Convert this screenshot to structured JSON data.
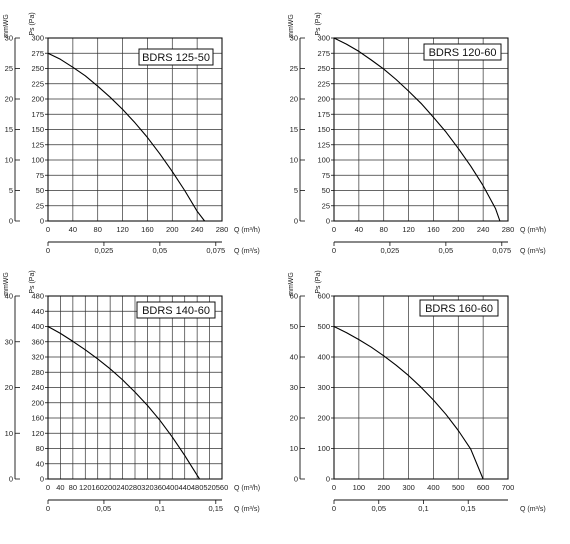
{
  "chart_data": [
    {
      "type": "line",
      "title": "BDRS 125-50",
      "y_left_label": "mmWG",
      "y_right_label": "Ps (Pa)",
      "x_top_label": "Q (m³/h)",
      "x_bottom_label": "Q (m³/s)",
      "ylim_pa": [
        0,
        300
      ],
      "y_pa_ticks": [
        "0",
        "25",
        "50",
        "75",
        "100",
        "125",
        "150",
        "175",
        "200",
        "225",
        "250",
        "275",
        "300"
      ],
      "y_mmwg_ticks": [
        "0",
        "5",
        "10",
        "15",
        "20",
        "25",
        "30"
      ],
      "xlim_m3h": [
        0,
        280
      ],
      "x_m3h_ticks": [
        "0",
        "40",
        "80",
        "120",
        "160",
        "200",
        "240",
        "280"
      ],
      "x_m3s_ticks": [
        {
          "v": 0,
          "label": "0"
        },
        {
          "v": 0.025,
          "label": "0,025"
        },
        {
          "v": 0.05,
          "label": "0,05"
        },
        {
          "v": 0.075,
          "label": "0,075"
        }
      ],
      "grid": true,
      "series": [
        {
          "x": [
            0,
            20,
            40,
            60,
            80,
            100,
            120,
            140,
            160,
            180,
            200,
            220,
            240,
            252
          ],
          "y": [
            275,
            265,
            252,
            238,
            221,
            203,
            183,
            161,
            137,
            110,
            81,
            50,
            16,
            0
          ]
        }
      ]
    },
    {
      "type": "line",
      "title": "BDRS 120-60",
      "y_left_label": "mmWG",
      "y_right_label": "Ps (Pa)",
      "x_top_label": "Q (m³/h)",
      "x_bottom_label": "Q (m³/s)",
      "ylim_pa": [
        0,
        300
      ],
      "y_pa_ticks": [
        "0",
        "25",
        "50",
        "75",
        "100",
        "125",
        "150",
        "175",
        "200",
        "225",
        "250",
        "275",
        "300"
      ],
      "y_mmwg_ticks": [
        "0",
        "5",
        "10",
        "15",
        "20",
        "25",
        "30"
      ],
      "xlim_m3h": [
        0,
        280
      ],
      "x_m3h_ticks": [
        "0",
        "40",
        "80",
        "120",
        "160",
        "200",
        "240",
        "280"
      ],
      "x_m3s_ticks": [
        {
          "v": 0,
          "label": "0"
        },
        {
          "v": 0.025,
          "label": "0,025"
        },
        {
          "v": 0.05,
          "label": "0,05"
        },
        {
          "v": 0.075,
          "label": "0,075"
        }
      ],
      "grid": true,
      "series": [
        {
          "x": [
            0,
            20,
            40,
            60,
            80,
            100,
            120,
            140,
            160,
            180,
            200,
            220,
            240,
            260,
            267
          ],
          "y": [
            300,
            290,
            278,
            264,
            249,
            232,
            213,
            193,
            170,
            146,
            119,
            90,
            58,
            20,
            0
          ]
        }
      ]
    },
    {
      "type": "line",
      "title": "BDRS 140-60",
      "y_left_label": "mmWG",
      "y_right_label": "Ps (Pa)",
      "x_top_label": "Q (m³/h)",
      "x_bottom_label": "Q (m³/s)",
      "ylim_pa": [
        0,
        480
      ],
      "y_pa_ticks": [
        "0",
        "40",
        "80",
        "120",
        "160",
        "200",
        "240",
        "280",
        "320",
        "360",
        "400",
        "440",
        "480"
      ],
      "y_mmwg_ticks": [
        "0",
        "10",
        "20",
        "30",
        "40"
      ],
      "xlim_m3h": [
        0,
        560
      ],
      "x_m3h_ticks": [
        "0",
        "40",
        "80",
        "120",
        "160",
        "200",
        "240",
        "280",
        "320",
        "360",
        "400",
        "440",
        "480",
        "520",
        "560"
      ],
      "x_m3s_ticks": [
        {
          "v": 0,
          "label": "0"
        },
        {
          "v": 0.05,
          "label": "0,05"
        },
        {
          "v": 0.1,
          "label": "0,1"
        },
        {
          "v": 0.15,
          "label": "0,15"
        }
      ],
      "grid": true,
      "series": [
        {
          "x": [
            0,
            40,
            80,
            120,
            160,
            200,
            240,
            280,
            320,
            360,
            400,
            440,
            480,
            488
          ],
          "y": [
            400,
            382,
            361,
            339,
            315,
            289,
            260,
            228,
            193,
            154,
            110,
            62,
            10,
            0
          ]
        }
      ]
    },
    {
      "type": "line",
      "title": "BDRS 160-60",
      "y_left_label": "mmWG",
      "y_right_label": "Ps (Pa)",
      "x_top_label": "",
      "x_bottom_label": "Q (m³/s)",
      "ylim_pa": [
        0,
        600
      ],
      "y_pa_ticks": [
        "0",
        "100",
        "200",
        "300",
        "400",
        "500",
        "600"
      ],
      "y_mmwg_ticks": [
        "0",
        "10",
        "20",
        "30",
        "40",
        "50",
        "60"
      ],
      "xlim_m3h": [
        0,
        700
      ],
      "x_m3h_ticks": [
        "0",
        "100",
        "200",
        "300",
        "400",
        "500",
        "600",
        "700"
      ],
      "x_m3s_ticks": [
        {
          "v": 0,
          "label": "0"
        },
        {
          "v": 0.05,
          "label": "0,05"
        },
        {
          "v": 0.1,
          "label": "0,1"
        },
        {
          "v": 0.15,
          "label": "0,15"
        }
      ],
      "grid": true,
      "series": [
        {
          "x": [
            0,
            50,
            100,
            150,
            200,
            250,
            300,
            350,
            400,
            450,
            500,
            550,
            600
          ],
          "y": [
            500,
            480,
            457,
            432,
            404,
            373,
            339,
            301,
            259,
            212,
            159,
            98,
            0
          ]
        }
      ]
    }
  ]
}
